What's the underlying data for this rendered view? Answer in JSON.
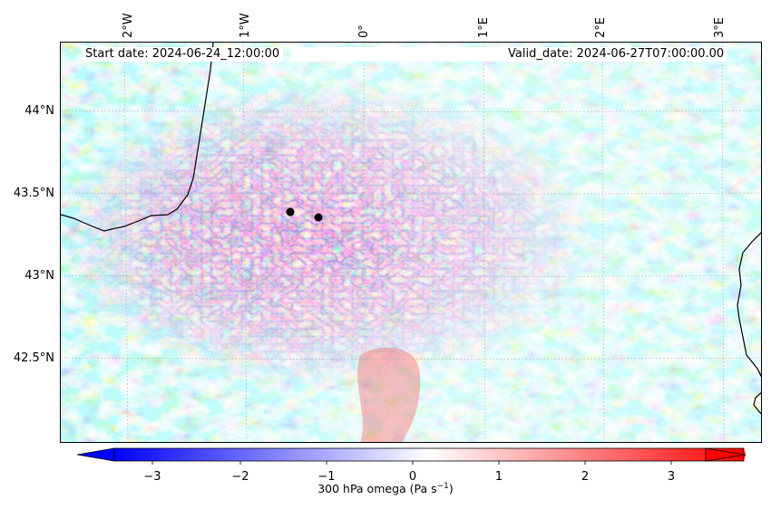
{
  "header": {
    "start_date": "Start date: 2024-06-24_12:00:00",
    "valid_date": "Valid_date: 2024-06-27T07:00:00.00"
  },
  "axes": {
    "lon_ticks": [
      "2°W",
      "1°W",
      "0°",
      "1°E",
      "2°E",
      "3°E"
    ],
    "lat_ticks": [
      "44°N",
      "43.5°N",
      "43°N",
      "42.5°N"
    ]
  },
  "colorbar": {
    "label": "300 hPa omega (Pa s",
    "label_superscript": "−1",
    "label_close": ")",
    "ticks": [
      "−3",
      "−2",
      "−1",
      "0",
      "1",
      "2",
      "3"
    ],
    "min": -3.5,
    "max": 3.5,
    "colormap": "bwr",
    "low_color": "#0000ff",
    "mid_color": "#ffffff",
    "high_color": "#ff0000"
  },
  "markers": [
    {
      "name": "point-a",
      "color": "#000000"
    },
    {
      "name": "point-b",
      "color": "#000000"
    }
  ]
}
